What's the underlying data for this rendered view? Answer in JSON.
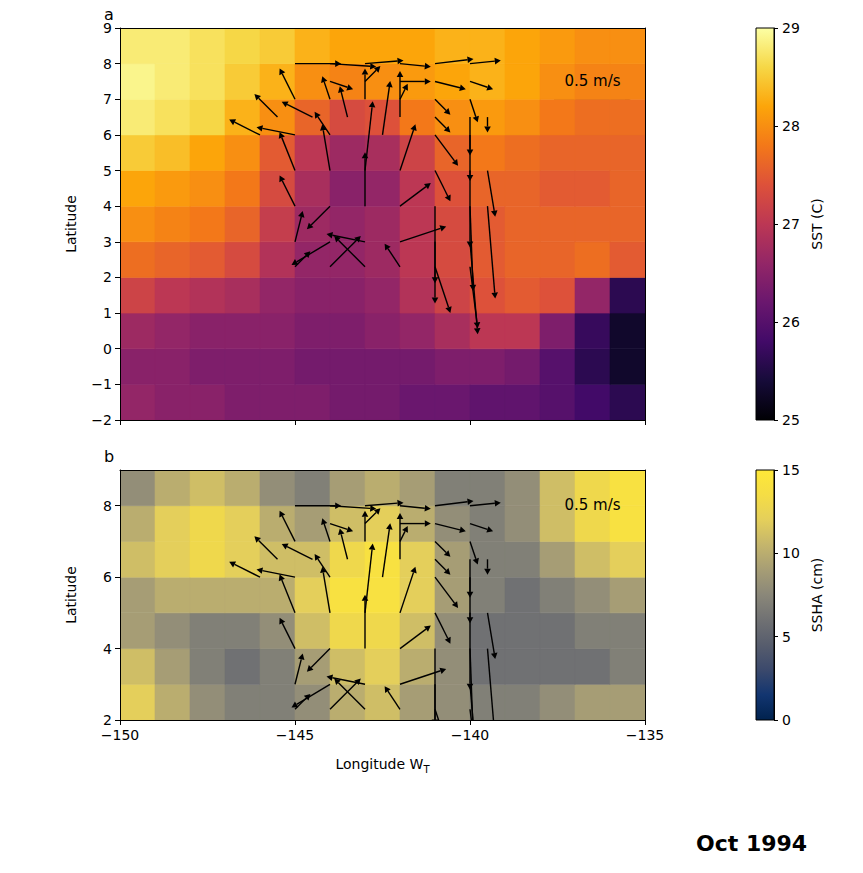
{
  "chart_data": [
    {
      "type": "heatmap_vector",
      "panel": "a",
      "ylabel": "Latitude",
      "xlim": [
        -150,
        -135
      ],
      "ylim": [
        -2,
        9
      ],
      "xticks": [
        -150,
        -145,
        -140,
        -135
      ],
      "yticks": [
        {
          "value": -2,
          "label": "−2"
        },
        {
          "value": -1,
          "label": "−1"
        },
        0,
        1,
        2,
        3,
        4,
        5,
        6,
        7,
        8,
        9
      ],
      "tick_labels": "y",
      "colorbar": {
        "label": "SST (C)",
        "range": [
          25,
          29
        ],
        "ticks": [
          25,
          26,
          27,
          28,
          29
        ]
      },
      "cells": {
        "lon": [
          -149.5,
          -148.5,
          -147.5,
          -146.5,
          -145.5,
          -144.5,
          -143.5,
          -142.5,
          -141.5,
          -140.5,
          -139.5,
          -138.5,
          -137.5,
          -136.5,
          -135.5
        ],
        "lat": [
          -1.5,
          -0.5,
          0.5,
          1.5,
          2.5,
          3.5,
          4.5,
          5.5,
          6.5,
          7.5,
          8.5
        ],
        "values": [
          [
            26.6,
            26.5,
            26.5,
            26.4,
            26.4,
            26.4,
            26.3,
            26.3,
            26.2,
            26.2,
            26.1,
            26.1,
            26.0,
            25.8,
            25.6
          ],
          [
            26.5,
            26.5,
            26.4,
            26.4,
            26.4,
            26.3,
            26.3,
            26.3,
            26.3,
            26.4,
            26.4,
            26.3,
            26.0,
            25.6,
            25.3
          ],
          [
            26.7,
            26.6,
            26.5,
            26.5,
            26.5,
            26.4,
            26.4,
            26.5,
            26.6,
            26.8,
            27.0,
            27.0,
            26.4,
            25.7,
            25.3
          ],
          [
            27.2,
            27.0,
            26.9,
            26.8,
            26.6,
            26.5,
            26.5,
            26.6,
            26.9,
            27.2,
            27.4,
            27.5,
            27.4,
            26.6,
            25.6
          ],
          [
            27.7,
            27.6,
            27.5,
            27.3,
            26.9,
            26.6,
            26.6,
            26.7,
            27.0,
            27.3,
            27.5,
            27.6,
            27.6,
            27.7,
            27.5
          ],
          [
            28.0,
            27.9,
            27.8,
            27.6,
            27.1,
            26.7,
            26.6,
            26.7,
            27.0,
            27.3,
            27.5,
            27.6,
            27.6,
            27.6,
            27.6
          ],
          [
            28.2,
            28.1,
            28.0,
            27.8,
            27.3,
            26.8,
            26.5,
            26.6,
            27.0,
            27.4,
            27.6,
            27.6,
            27.5,
            27.5,
            27.6
          ],
          [
            28.5,
            28.4,
            28.2,
            28.0,
            27.5,
            27.0,
            26.7,
            26.8,
            27.2,
            27.6,
            27.8,
            27.7,
            27.6,
            27.6,
            27.6
          ],
          [
            28.8,
            28.7,
            28.6,
            28.3,
            28.0,
            27.6,
            27.3,
            27.4,
            27.8,
            28.0,
            28.1,
            28.0,
            27.8,
            27.7,
            27.7
          ],
          [
            28.9,
            28.8,
            28.7,
            28.5,
            28.3,
            28.0,
            27.9,
            28.0,
            28.1,
            28.2,
            28.3,
            28.2,
            28.0,
            27.9,
            27.9
          ],
          [
            28.8,
            28.8,
            28.7,
            28.6,
            28.5,
            28.3,
            28.2,
            28.2,
            28.2,
            28.3,
            28.3,
            28.2,
            28.1,
            28.0,
            28.0
          ]
        ]
      },
      "arrows": [
        [
          -145,
          8,
          0.3,
          0
        ],
        [
          -144,
          8,
          0.3,
          -0.02
        ],
        [
          -143,
          8,
          0.25,
          0.02
        ],
        [
          -142,
          8,
          0.2,
          -0.02
        ],
        [
          -141,
          8,
          0.25,
          0.03
        ],
        [
          -140,
          8,
          0.2,
          0.02
        ],
        [
          -144,
          7.5,
          0.15,
          -0.05
        ],
        [
          -143,
          7.5,
          0.1,
          0.1
        ],
        [
          -142,
          7.5,
          0.2,
          0
        ],
        [
          -141,
          7.5,
          0.2,
          -0.05
        ],
        [
          -140,
          7.5,
          0.15,
          -0.05
        ],
        [
          -145,
          7,
          -0.1,
          0.2
        ],
        [
          -144,
          7,
          -0.05,
          0.15
        ],
        [
          -143,
          7,
          0,
          0.2
        ],
        [
          -142,
          7,
          0.05,
          0.1
        ],
        [
          -141,
          7,
          0.1,
          -0.1
        ],
        [
          -140,
          7,
          0.05,
          -0.15
        ],
        [
          -145.5,
          6.5,
          -0.15,
          0.15
        ],
        [
          -144.5,
          6.5,
          -0.2,
          0.1
        ],
        [
          -143.5,
          6.5,
          -0.05,
          0.2
        ],
        [
          -142,
          6.5,
          0,
          0.3
        ],
        [
          -141,
          6.5,
          0.1,
          -0.1
        ],
        [
          -140,
          6.5,
          0,
          -0.25
        ],
        [
          -139.5,
          6.5,
          0,
          -0.1
        ],
        [
          -146,
          6,
          -0.2,
          0.1
        ],
        [
          -145,
          6,
          -0.25,
          0.05
        ],
        [
          -144,
          6,
          -0.1,
          0.15
        ],
        [
          -142.5,
          6,
          0.05,
          0.35
        ],
        [
          -141,
          6,
          0.15,
          -0.2
        ],
        [
          -140,
          6,
          0,
          -0.3
        ],
        [
          -145,
          5,
          -0.1,
          0.25
        ],
        [
          -144,
          5,
          -0.05,
          0.3
        ],
        [
          -143,
          5,
          0.05,
          0.45
        ],
        [
          -142,
          5,
          0.1,
          0.3
        ],
        [
          -141,
          5,
          0.1,
          -0.2
        ],
        [
          -140,
          5,
          0,
          -0.5
        ],
        [
          -139.5,
          5,
          0.05,
          -0.3
        ],
        [
          -145,
          4,
          -0.1,
          0.2
        ],
        [
          -144,
          4,
          -0.15,
          -0.15
        ],
        [
          -143,
          4,
          0,
          0.35
        ],
        [
          -142,
          4,
          0.2,
          0.15
        ],
        [
          -141,
          4,
          0,
          -0.5
        ],
        [
          -140,
          4,
          0.02,
          -0.55
        ],
        [
          -139.5,
          4,
          0.05,
          -0.6
        ],
        [
          -145,
          3,
          0.05,
          0.2
        ],
        [
          -144,
          3,
          -0.25,
          -0.15
        ],
        [
          -143,
          3,
          -0.25,
          0.05
        ],
        [
          -142,
          3,
          0.3,
          0.1
        ],
        [
          -141,
          3,
          0,
          -0.4
        ],
        [
          -140,
          3,
          0.05,
          -0.6
        ],
        [
          -145,
          2.3,
          0.1,
          0.1
        ],
        [
          -144,
          2.3,
          0.2,
          0.2
        ],
        [
          -143,
          2.3,
          -0.2,
          0.2
        ],
        [
          -142,
          2.3,
          -0.1,
          0.15
        ],
        [
          -141,
          2.3,
          0.1,
          -0.3
        ],
        [
          -140,
          2.3,
          0.05,
          -0.4
        ]
      ],
      "key": {
        "value": 0.5,
        "label": "0.5 m/s"
      }
    },
    {
      "type": "heatmap_vector",
      "panel": "b",
      "ylabel": "Latitude",
      "xlabel": "Longitude W",
      "xlabel_subscript": "T",
      "xlim": [
        -150,
        -135
      ],
      "ylim": [
        2,
        9
      ],
      "xticks": [
        {
          "value": -150,
          "label": "−150"
        },
        {
          "value": -145,
          "label": "−145"
        },
        {
          "value": -140,
          "label": "−140"
        },
        {
          "value": -135,
          "label": "−135"
        }
      ],
      "yticks": [
        2,
        4,
        6,
        8
      ],
      "colorbar": {
        "label": "SSHA (cm)",
        "range": [
          0,
          15
        ],
        "ticks": [
          0,
          5,
          10,
          15
        ]
      },
      "cells": {
        "lon": [
          -149.5,
          -148.5,
          -147.5,
          -146.5,
          -145.5,
          -144.5,
          -143.5,
          -142.5,
          -141.5,
          -140.5,
          -139.5,
          -138.5,
          -137.5,
          -136.5,
          -135.5
        ],
        "lat": [
          2.5,
          3.5,
          4.5,
          5.5,
          6.5,
          7.5,
          8.5
        ],
        "values": [
          [
            12,
            10,
            8,
            7,
            7,
            8,
            10,
            11,
            9,
            8,
            7,
            7,
            8,
            9,
            9
          ],
          [
            11,
            9,
            7,
            6,
            7,
            9,
            11,
            12,
            10,
            8,
            6,
            6,
            6,
            6,
            7
          ],
          [
            9,
            8,
            7,
            7,
            8,
            11,
            13,
            13,
            11,
            8,
            6,
            6,
            6,
            7,
            7
          ],
          [
            9,
            10,
            10,
            10,
            10,
            12,
            14,
            14,
            12,
            9,
            7,
            6,
            7,
            8,
            9
          ],
          [
            11,
            12,
            13,
            12,
            11,
            11,
            13,
            14,
            12,
            9,
            7,
            7,
            9,
            11,
            12
          ],
          [
            10,
            12,
            13,
            12,
            10,
            9,
            11,
            12,
            10,
            8,
            7,
            8,
            11,
            13,
            14
          ],
          [
            8,
            10,
            11,
            10,
            8,
            7,
            9,
            10,
            9,
            7,
            7,
            8,
            11,
            13,
            14
          ]
        ]
      },
      "arrows": [
        [
          -145,
          8,
          0.3,
          0
        ],
        [
          -144,
          8,
          0.3,
          -0.02
        ],
        [
          -143,
          8,
          0.25,
          0.02
        ],
        [
          -142,
          8,
          0.2,
          -0.02
        ],
        [
          -141,
          8,
          0.25,
          0.03
        ],
        [
          -140,
          8,
          0.2,
          0.02
        ],
        [
          -144,
          7.5,
          0.15,
          -0.05
        ],
        [
          -143,
          7.5,
          0.1,
          0.1
        ],
        [
          -142,
          7.5,
          0.2,
          0
        ],
        [
          -141,
          7.5,
          0.2,
          -0.05
        ],
        [
          -140,
          7.5,
          0.15,
          -0.05
        ],
        [
          -145,
          7,
          -0.1,
          0.2
        ],
        [
          -144,
          7,
          -0.05,
          0.15
        ],
        [
          -143,
          7,
          0,
          0.2
        ],
        [
          -142,
          7,
          0.05,
          0.1
        ],
        [
          -141,
          7,
          0.1,
          -0.1
        ],
        [
          -140,
          7,
          0.05,
          -0.15
        ],
        [
          -145.5,
          6.5,
          -0.15,
          0.15
        ],
        [
          -144.5,
          6.5,
          -0.2,
          0.1
        ],
        [
          -143.5,
          6.5,
          -0.05,
          0.2
        ],
        [
          -142,
          6.5,
          0,
          0.3
        ],
        [
          -141,
          6.5,
          0.1,
          -0.1
        ],
        [
          -140,
          6.5,
          0,
          -0.25
        ],
        [
          -139.5,
          6.5,
          0,
          -0.1
        ],
        [
          -146,
          6,
          -0.2,
          0.1
        ],
        [
          -145,
          6,
          -0.25,
          0.05
        ],
        [
          -144,
          6,
          -0.1,
          0.15
        ],
        [
          -142.5,
          6,
          0.05,
          0.35
        ],
        [
          -141,
          6,
          0.15,
          -0.2
        ],
        [
          -140,
          6,
          0,
          -0.3
        ],
        [
          -145,
          5,
          -0.1,
          0.25
        ],
        [
          -144,
          5,
          -0.05,
          0.3
        ],
        [
          -143,
          5,
          0.05,
          0.45
        ],
        [
          -142,
          5,
          0.1,
          0.3
        ],
        [
          -141,
          5,
          0.1,
          -0.2
        ],
        [
          -140,
          5,
          0,
          -0.5
        ],
        [
          -139.5,
          5,
          0.05,
          -0.3
        ],
        [
          -145,
          4,
          -0.1,
          0.2
        ],
        [
          -144,
          4,
          -0.15,
          -0.15
        ],
        [
          -143,
          4,
          0,
          0.35
        ],
        [
          -142,
          4,
          0.2,
          0.15
        ],
        [
          -141,
          4,
          0,
          -0.5
        ],
        [
          -140,
          4,
          0.02,
          -0.55
        ],
        [
          -139.5,
          4,
          0.05,
          -0.6
        ],
        [
          -145,
          3,
          0.05,
          0.2
        ],
        [
          -144,
          3,
          -0.25,
          -0.15
        ],
        [
          -143,
          3,
          -0.25,
          0.05
        ],
        [
          -142,
          3,
          0.3,
          0.1
        ],
        [
          -141,
          3,
          0,
          -0.4
        ],
        [
          -140,
          3,
          0.05,
          -0.6
        ],
        [
          -145,
          2.3,
          0.1,
          0.1
        ],
        [
          -144,
          2.3,
          0.2,
          0.2
        ],
        [
          -143,
          2.3,
          -0.2,
          0.2
        ],
        [
          -142,
          2.3,
          -0.1,
          0.15
        ],
        [
          -141,
          2.3,
          0.1,
          -0.3
        ],
        [
          -140,
          2.3,
          0.05,
          -0.4
        ]
      ],
      "key": {
        "value": 0.5,
        "label": "0.5 m/s"
      }
    }
  ],
  "annotation": "Oct 1994"
}
